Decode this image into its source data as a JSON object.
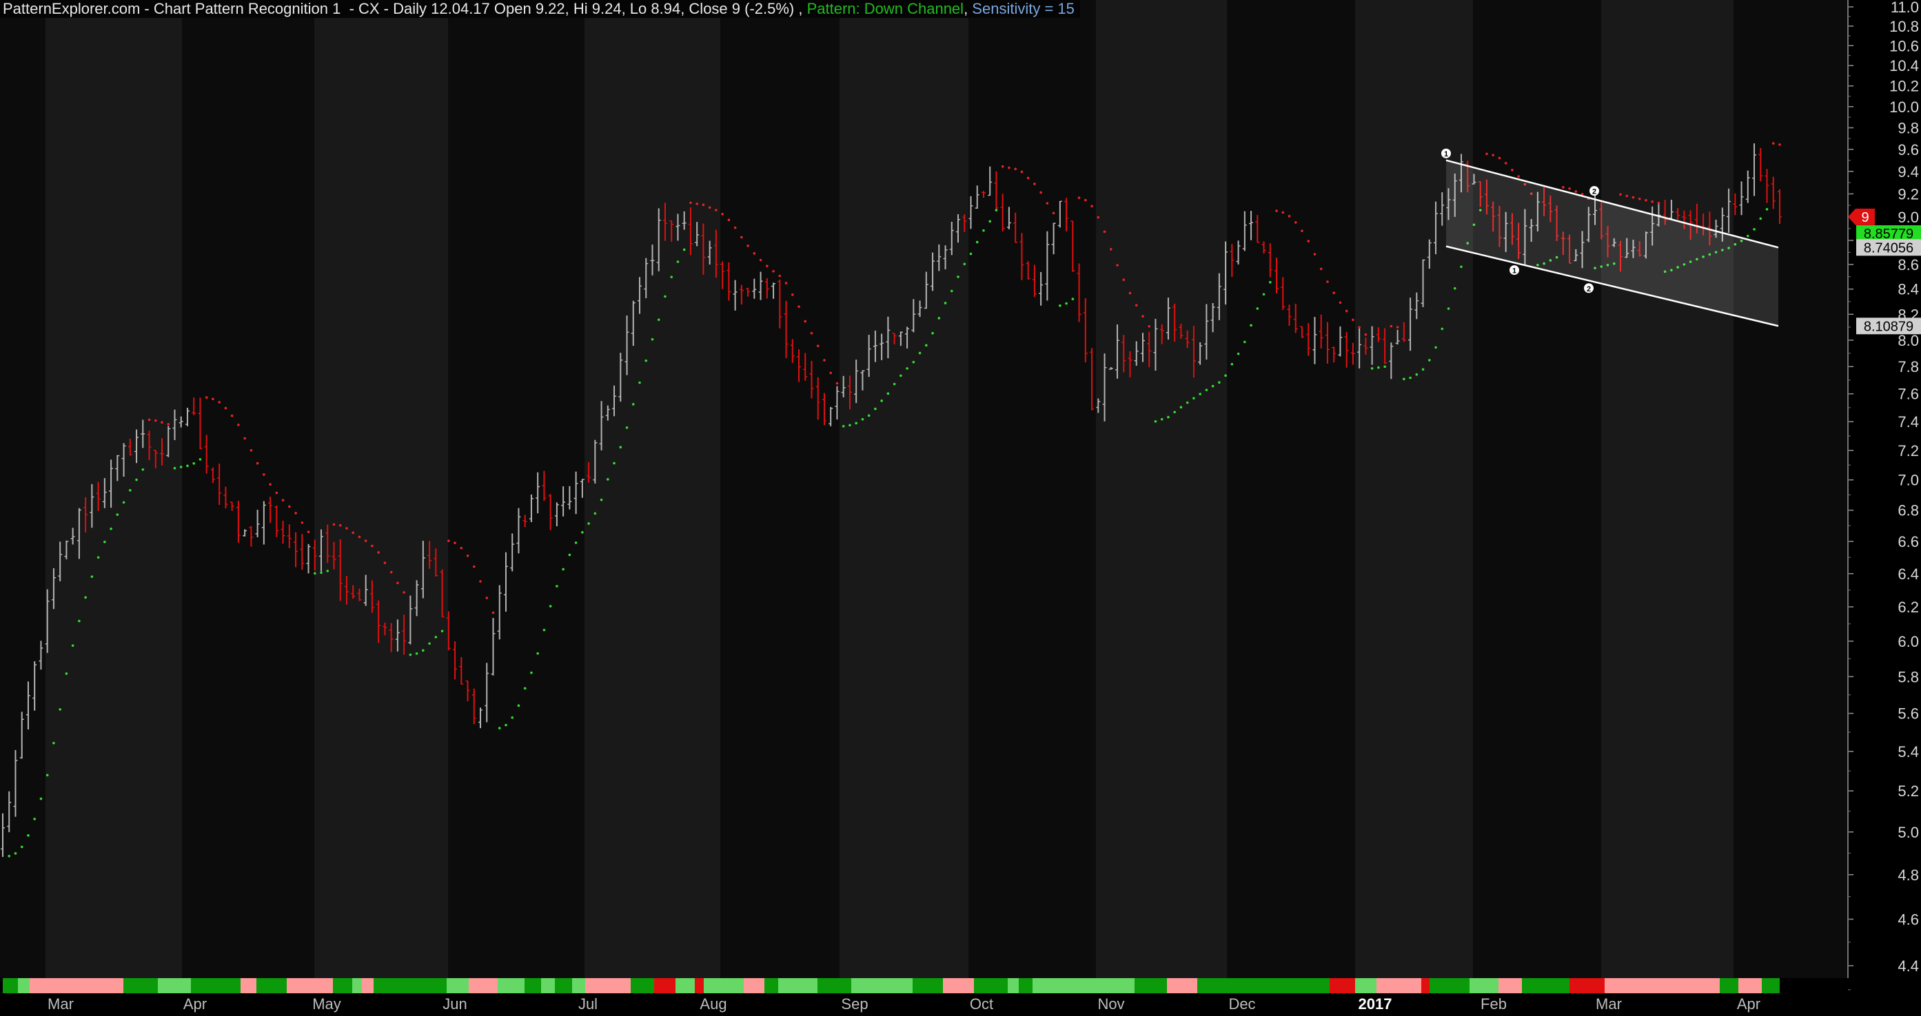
{
  "header": {
    "site": "PatternExplorer.com - Chart Pattern Recognition 1  - CX - Daily 12.04.17 Open 9.22, Hi 9.24, Lo 8.94, Close 9 (-2.5%) , ",
    "pattern": "Pattern: Down Channel",
    "sep": ", ",
    "sensitivity": "Sensitivity = 15"
  },
  "colors": {
    "background": "#000000",
    "band_dark": "#0c0c0c",
    "band_light": "#191919",
    "up_bar": "#b4b4b4",
    "down_bar": "#e01010",
    "sar_up": "#33dd33",
    "sar_down": "#ee2222",
    "channel": "#ffffff",
    "pattern_text": "#22bb22",
    "sensitivity_text": "#7aa7e0"
  },
  "chart_data": {
    "type": "ohlc",
    "title": "PatternExplorer.com - Chart Pattern Recognition 1  - CX - Daily 12.04.17 Open 9.22, Hi 9.24, Lo 8.94, Close 9 (-2.5%)",
    "yscale": "log",
    "ylim": [
      4.3,
      11.0
    ],
    "y_ticks": [
      "4.4",
      "4.6",
      "4.8",
      "5.0",
      "5.2",
      "5.4",
      "5.6",
      "5.8",
      "6.0",
      "6.2",
      "6.4",
      "6.6",
      "6.8",
      "7.0",
      "7.2",
      "7.4",
      "7.6",
      "7.8",
      "8.0",
      "8.2",
      "8.4",
      "8.6",
      "8.8",
      "9.0",
      "9.2",
      "9.4",
      "9.6",
      "9.8",
      "10.0",
      "10.2",
      "10.4",
      "10.6",
      "10.8",
      "11.0"
    ],
    "x_months": [
      "Mar",
      "Apr",
      "May",
      "Jun",
      "Jul",
      "Aug",
      "Sep",
      "Oct",
      "Nov",
      "Dec",
      "2017",
      "Feb",
      "Mar",
      "Apr"
    ],
    "price_labels": [
      {
        "text": "9",
        "kind": "last"
      },
      {
        "text": "8.85779",
        "kind": "sar"
      },
      {
        "text": "8.74056",
        "kind": "upper"
      },
      {
        "text": "8.10879",
        "kind": "lower"
      }
    ],
    "channel": {
      "pattern": "Down Channel",
      "upper": [
        9.5,
        8.74056
      ],
      "lower": [
        8.75,
        8.10879
      ],
      "points": [
        "1",
        "2",
        "1",
        "2"
      ]
    },
    "anchors": [
      5.0,
      5.7,
      6.4,
      6.8,
      7.0,
      7.3,
      7.2,
      7.5,
      7.0,
      6.6,
      6.8,
      6.5,
      6.6,
      6.3,
      6.2,
      6.0,
      6.6,
      5.8,
      5.6,
      6.5,
      6.9,
      6.8,
      7.0,
      7.6,
      8.4,
      9.05,
      8.8,
      8.6,
      8.3,
      8.4,
      7.8,
      7.4,
      7.7,
      8.0,
      8.1,
      8.5,
      8.9,
      9.3,
      8.9,
      8.4,
      9.2,
      7.5,
      7.9,
      7.9,
      8.2,
      7.8,
      8.6,
      9.0,
      8.4,
      8.0,
      7.9,
      8.0,
      7.9,
      8.1,
      8.9,
      9.4,
      9.05,
      8.75,
      9.1,
      8.65,
      9.0,
      8.6,
      8.8,
      9.15,
      8.9,
      9.0,
      9.5,
      9.0
    ]
  }
}
